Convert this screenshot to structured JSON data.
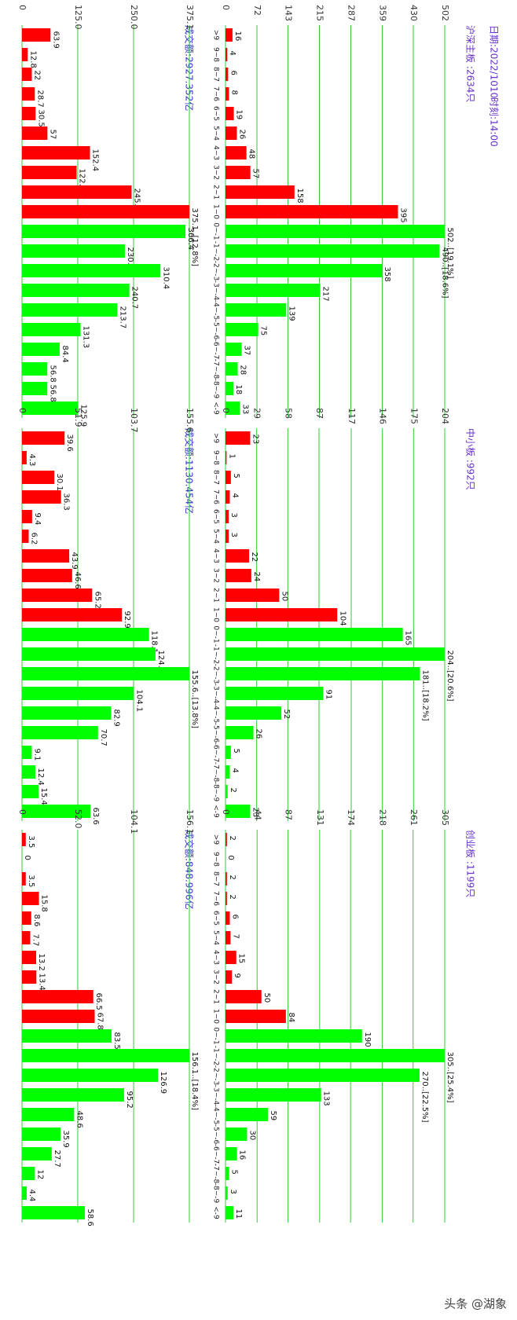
{
  "header": {
    "date": "日期:2022/1010",
    "time": "时刻:14:00"
  },
  "watermark": "头条 @湖象",
  "chart_data": [
    {
      "type": "bar",
      "title": "沪深主板 :2634只",
      "categories": [
        ">9",
        "9~8",
        "8~7",
        "7~6",
        "6~5",
        "5~4",
        "4~3",
        "3~2",
        "2~1",
        "1~0",
        "0~-1",
        "-1~-2",
        "-2~-3",
        "-3~-4",
        "-4~-5",
        "-5~-6",
        "-6~-7",
        "-7~-8",
        "-8~-9",
        "<-9"
      ],
      "values": [
        16,
        4,
        6,
        8,
        19,
        26,
        48,
        57,
        158,
        395,
        502,
        490,
        358,
        217,
        139,
        75,
        37,
        28,
        18,
        33
      ],
      "value_labels": [
        null,
        null,
        null,
        null,
        null,
        null,
        null,
        null,
        null,
        null,
        "502..[19.1%]",
        "490..[18.6%]",
        null,
        null,
        null,
        null,
        null,
        null,
        null,
        null
      ],
      "colors": [
        "#ff0000",
        "#ff0000",
        "#ff0000",
        "#ff0000",
        "#ff0000",
        "#ff0000",
        "#ff0000",
        "#ff0000",
        "#ff0000",
        "#ff0000",
        "#00ff00",
        "#00ff00",
        "#00ff00",
        "#00ff00",
        "#00ff00",
        "#00ff00",
        "#00ff00",
        "#00ff00",
        "#00ff00",
        "#00ff00"
      ],
      "ylim": [
        0,
        502
      ],
      "yticks": [
        0,
        72,
        143,
        215,
        287,
        359,
        430,
        502
      ],
      "grid": true
    },
    {
      "type": "bar",
      "title": "中小板 :992只",
      "categories": [
        ">9",
        "9~8",
        "8~7",
        "7~6",
        "6~5",
        "5~4",
        "4~3",
        "3~2",
        "2~1",
        "1~0",
        "0~-1",
        "-1~-2",
        "-2~-3",
        "-3~-4",
        "-4~-5",
        "-5~-6",
        "-6~-7",
        "-7~-8",
        "-8~-9",
        "<-9"
      ],
      "values": [
        23,
        1,
        5,
        4,
        3,
        3,
        22,
        24,
        50,
        104,
        165,
        204,
        181,
        91,
        52,
        26,
        5,
        4,
        2,
        23
      ],
      "value_labels": [
        null,
        null,
        null,
        null,
        null,
        null,
        null,
        null,
        null,
        null,
        null,
        "204..[20.6%]",
        "181..[18.2%]",
        null,
        null,
        null,
        null,
        null,
        null,
        null
      ],
      "colors": [
        "#ff0000",
        "#ff0000",
        "#ff0000",
        "#ff0000",
        "#ff0000",
        "#ff0000",
        "#ff0000",
        "#ff0000",
        "#ff0000",
        "#ff0000",
        "#00ff00",
        "#00ff00",
        "#00ff00",
        "#00ff00",
        "#00ff00",
        "#00ff00",
        "#00ff00",
        "#00ff00",
        "#00ff00",
        "#00ff00"
      ],
      "ylim": [
        0,
        204
      ],
      "yticks": [
        0,
        29,
        58,
        87,
        117,
        146,
        175,
        204
      ],
      "grid": true
    },
    {
      "type": "bar",
      "title": "创业板 :1199只",
      "categories": [
        ">9",
        "9~8",
        "8~7",
        "7~6",
        "6~5",
        "5~4",
        "4~3",
        "3~2",
        "2~1",
        "1~0",
        "0~-1",
        "-1~-2",
        "-2~-3",
        "-3~-4",
        "-4~-5",
        "-5~-6",
        "-6~-7",
        "-7~-8",
        "-8~-9",
        "<-9"
      ],
      "values": [
        2,
        0,
        2,
        2,
        6,
        7,
        15,
        9,
        50,
        84,
        190,
        305,
        270,
        133,
        59,
        30,
        16,
        5,
        3,
        11
      ],
      "value_labels": [
        null,
        null,
        null,
        null,
        null,
        null,
        null,
        null,
        null,
        null,
        null,
        "305..[25.4%]",
        "270..[22.5%]",
        null,
        null,
        null,
        null,
        null,
        null,
        null
      ],
      "colors": [
        "#ff0000",
        "#ff0000",
        "#ff0000",
        "#ff0000",
        "#ff0000",
        "#ff0000",
        "#ff0000",
        "#ff0000",
        "#ff0000",
        "#ff0000",
        "#00ff00",
        "#00ff00",
        "#00ff00",
        "#00ff00",
        "#00ff00",
        "#00ff00",
        "#00ff00",
        "#00ff00",
        "#00ff00",
        "#00ff00"
      ],
      "ylim": [
        0,
        305
      ],
      "yticks": [
        0,
        44,
        87,
        131,
        174,
        218,
        261,
        305
      ],
      "grid": true
    },
    {
      "type": "bar",
      "title": "成交额:2927.352亿",
      "values": [
        63.9,
        12.8,
        22,
        28.7,
        30.5,
        57,
        152.4,
        122.4,
        245.6,
        375.1,
        366.4,
        230.6,
        310.4,
        240.7,
        213.7,
        131.3,
        84.4,
        56.8,
        56.8,
        125.9
      ],
      "value_labels": [
        null,
        null,
        null,
        null,
        null,
        null,
        null,
        null,
        null,
        "375.1..[12.8%]",
        null,
        null,
        null,
        null,
        null,
        null,
        null,
        null,
        null,
        null
      ],
      "colors": [
        "#ff0000",
        "#ff0000",
        "#ff0000",
        "#ff0000",
        "#ff0000",
        "#ff0000",
        "#ff0000",
        "#ff0000",
        "#ff0000",
        "#ff0000",
        "#00ff00",
        "#00ff00",
        "#00ff00",
        "#00ff00",
        "#00ff00",
        "#00ff00",
        "#00ff00",
        "#00ff00",
        "#00ff00",
        "#00ff00"
      ],
      "ylim": [
        0,
        375.1
      ],
      "yticks": [
        0,
        {
          "value": 125,
          "label": "125.0"
        },
        {
          "value": 250,
          "label": "250.0"
        },
        375.1
      ],
      "grid": true
    },
    {
      "type": "bar",
      "title": "成交额:1130.454亿",
      "values": [
        39.6,
        4.3,
        30.1,
        36.3,
        9.4,
        6.2,
        43.9,
        46.6,
        65.2,
        92.9,
        118.1,
        124.1,
        155.6,
        104.1,
        82.9,
        70.7,
        9.1,
        12.4,
        15.4,
        63.6
      ],
      "value_labels": [
        null,
        null,
        null,
        null,
        null,
        null,
        null,
        null,
        null,
        null,
        null,
        null,
        "155.6..[13.8%]",
        null,
        null,
        null,
        null,
        null,
        null,
        null
      ],
      "colors": [
        "#ff0000",
        "#ff0000",
        "#ff0000",
        "#ff0000",
        "#ff0000",
        "#ff0000",
        "#ff0000",
        "#ff0000",
        "#ff0000",
        "#ff0000",
        "#00ff00",
        "#00ff00",
        "#00ff00",
        "#00ff00",
        "#00ff00",
        "#00ff00",
        "#00ff00",
        "#00ff00",
        "#00ff00",
        "#00ff00"
      ],
      "ylim": [
        0,
        155.6
      ],
      "yticks": [
        0,
        51.9,
        103.7,
        155.6
      ],
      "grid": true
    },
    {
      "type": "bar",
      "title": "成交额:848.996亿",
      "values": [
        3.5,
        0,
        3.5,
        15.8,
        8.6,
        7.7,
        13.2,
        13.4,
        66.5,
        67.8,
        83.5,
        156.1,
        126.9,
        95.2,
        48.6,
        35.9,
        27.7,
        12,
        4.4,
        58.6
      ],
      "value_labels": [
        null,
        null,
        null,
        null,
        null,
        null,
        null,
        null,
        null,
        null,
        null,
        "156.1..[18.4%]",
        null,
        null,
        null,
        null,
        null,
        null,
        null,
        null
      ],
      "colors": [
        "#ff0000",
        "#ff0000",
        "#ff0000",
        "#ff0000",
        "#ff0000",
        "#ff0000",
        "#ff0000",
        "#ff0000",
        "#ff0000",
        "#ff0000",
        "#00ff00",
        "#00ff00",
        "#00ff00",
        "#00ff00",
        "#00ff00",
        "#00ff00",
        "#00ff00",
        "#00ff00",
        "#00ff00",
        "#00ff00"
      ],
      "ylim": [
        0,
        156.1
      ],
      "yticks": [
        0,
        {
          "value": 52,
          "label": "52.0"
        },
        104.1,
        156.1
      ],
      "grid": true
    }
  ]
}
